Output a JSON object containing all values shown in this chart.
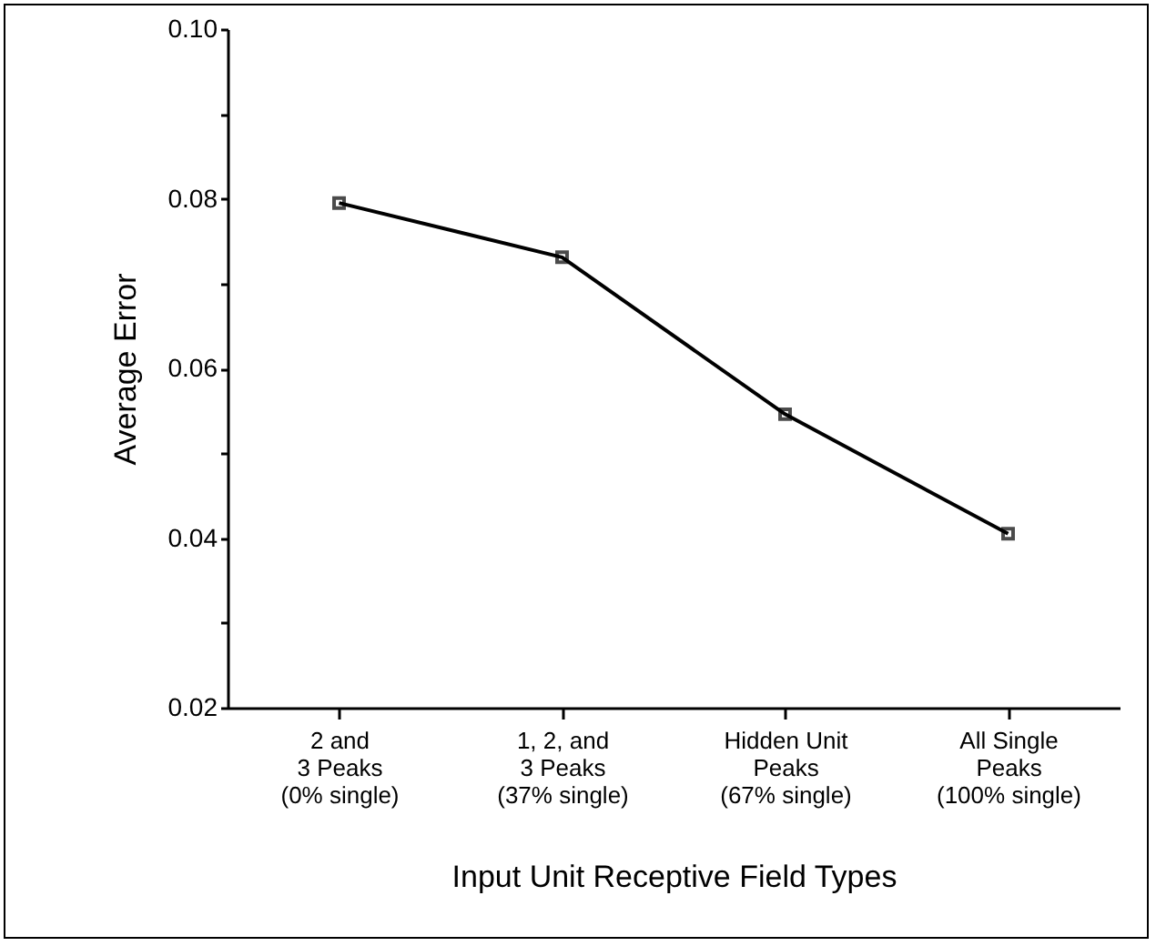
{
  "chart_data": {
    "type": "line",
    "xlabel": "Input Unit Receptive Field Types",
    "ylabel": "Average Error",
    "categories": [
      "2 and\n3 Peaks\n(0% single)",
      "1, 2, and\n3 Peaks\n(37% single)",
      "Hidden Unit\nPeaks\n(67% single)",
      "All Single\nPeaks\n(100% single)"
    ],
    "series": [
      {
        "color": "#000000",
        "values": [
          0.0795,
          0.0731,
          0.0546,
          0.0405
        ]
      }
    ],
    "ylim": [
      0.02,
      0.1
    ],
    "yticks": [
      {
        "value": 0.02,
        "label": "0.02"
      },
      {
        "value": 0.03,
        "label": null
      },
      {
        "value": 0.04,
        "label": "0.04"
      },
      {
        "value": 0.05,
        "label": null
      },
      {
        "value": 0.06,
        "label": "0.06"
      },
      {
        "value": 0.07,
        "label": null
      },
      {
        "value": 0.08,
        "label": "0.08"
      },
      {
        "value": 0.09,
        "label": null
      },
      {
        "value": 0.1,
        "label": "0.10"
      }
    ],
    "marker": "square",
    "line_style": "solid",
    "grid": false
  }
}
